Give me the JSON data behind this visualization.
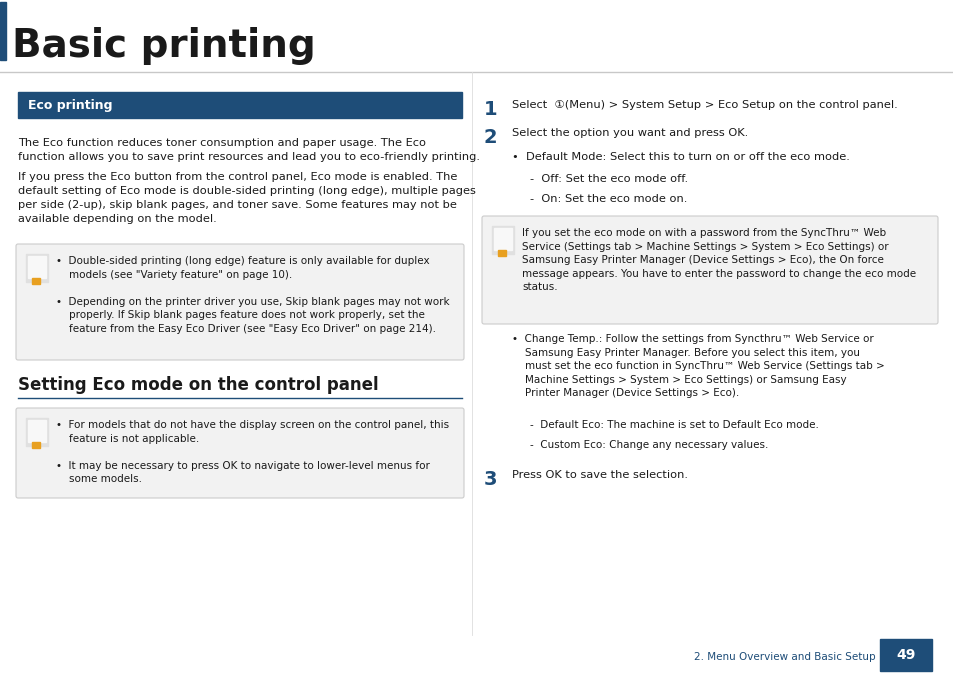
{
  "title": "Basic printing",
  "page_bg": "#ffffff",
  "header_bar_color": "#1e4d78",
  "section_bg": "#1e4d78",
  "section_text": "Eco printing",
  "section_text_color": "#ffffff",
  "note_bg": "#f2f2f2",
  "note_border": "#cccccc",
  "subsection_title": "Setting Eco mode on the control panel",
  "subsection_line_color": "#1e4d78",
  "footer_label": "2. Menu Overview and Basic Setup",
  "footer_page": "49",
  "footer_label_color": "#1e4d78",
  "footer_box_bg": "#1e4d78",
  "footer_page_color": "#ffffff",
  "step_color": "#1e4d78",
  "body_color": "#1a1a1a"
}
